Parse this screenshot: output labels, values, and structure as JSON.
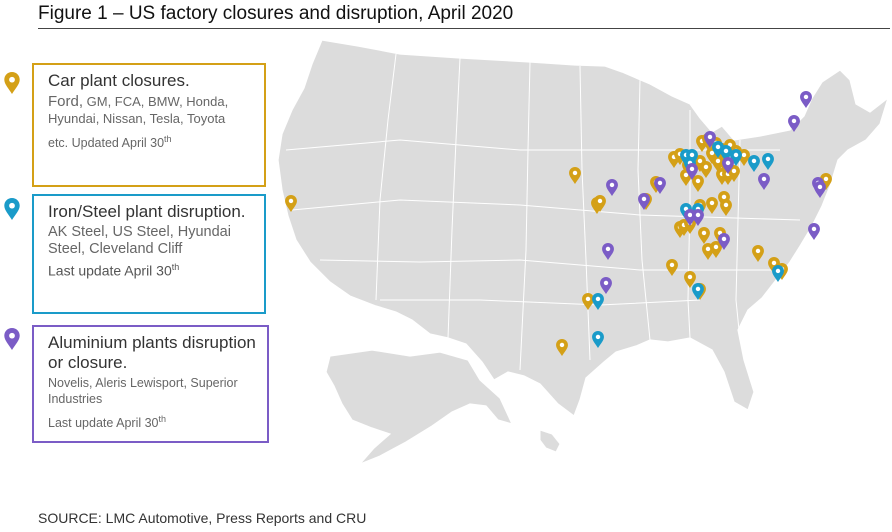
{
  "title": "Figure 1 – US factory closures and disruption, April 2020",
  "colors": {
    "car": "#d4a017",
    "steel": "#1a9bc9",
    "aluminium": "#7b5cc6",
    "land": "#dcdcdc",
    "border": "#ffffff"
  },
  "legend": {
    "car": {
      "heading": "Car plant closures.",
      "companies_first": "Ford,",
      "companies_rest": " GM, FCA, BMW, Honda, Hyundai, Nissan, Tesla, Toyota",
      "update": "etc. Updated April 30",
      "sup": "th",
      "icon": "map-pin-icon"
    },
    "steel": {
      "heading": "Iron/Steel plant disruption.",
      "companies": "AK Steel, US Steel, Hyundai Steel, Cleveland Cliff",
      "update": "Last update April 30",
      "sup": "th",
      "icon": "map-pin-icon"
    },
    "aluminium": {
      "heading": "Aluminium plants disruption or closure.",
      "companies": "Novelis,  Aleris Lewisport, Superior Industries",
      "update": "Last update April 30",
      "sup": "th",
      "icon": "map-pin-icon"
    }
  },
  "source": "SOURCE: LMC Automotive, Press Reports and CRU"
}
